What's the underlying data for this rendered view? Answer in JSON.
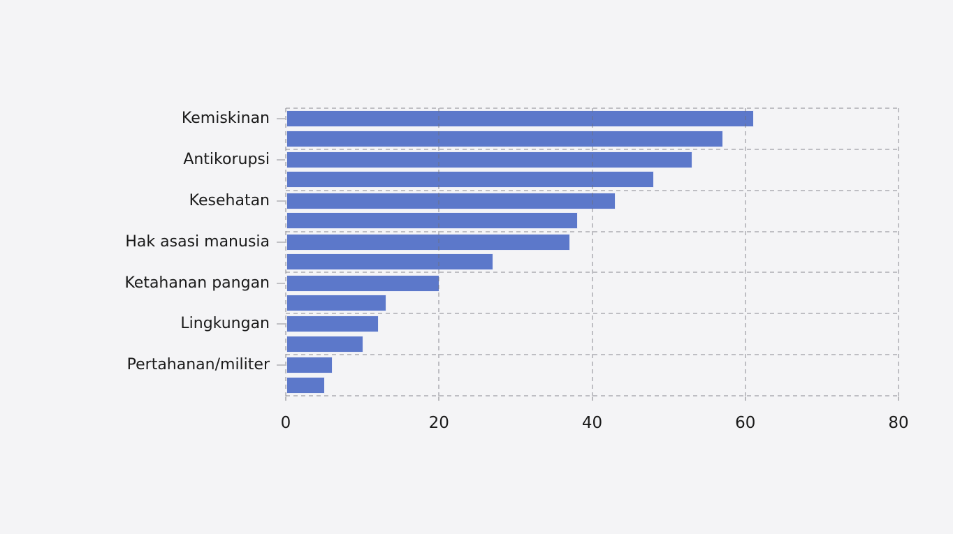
{
  "chart_data": {
    "type": "bar",
    "orientation": "horizontal",
    "title": "",
    "xlabel": "",
    "ylabel": "",
    "categories": [
      "Kemiskinan",
      "Antikorupsi",
      "Kesehatan",
      "Hak asasi manusia",
      "Ketahanan pangan",
      "Lingkungan",
      "Pertahanan/militer"
    ],
    "series": [
      {
        "name": "bar-top",
        "values": [
          61,
          53,
          43,
          37,
          20,
          12,
          6
        ]
      },
      {
        "name": "bar-bottom",
        "values": [
          57,
          48,
          38,
          27,
          13,
          10,
          5
        ]
      }
    ],
    "xlim": [
      0,
      80
    ],
    "xticks": [
      0,
      20,
      40,
      60,
      80
    ],
    "xtick_labels": [
      "0",
      "20",
      "40",
      "60",
      "80"
    ],
    "grid": "dashed, vertical at x ticks and horizontal at category boundaries",
    "legend": "none",
    "colors": {
      "bar_fill": "#5c78ca",
      "background": "#f4f4f6",
      "gridline": "#c9c9cd",
      "text": "#1a1a1a"
    }
  }
}
